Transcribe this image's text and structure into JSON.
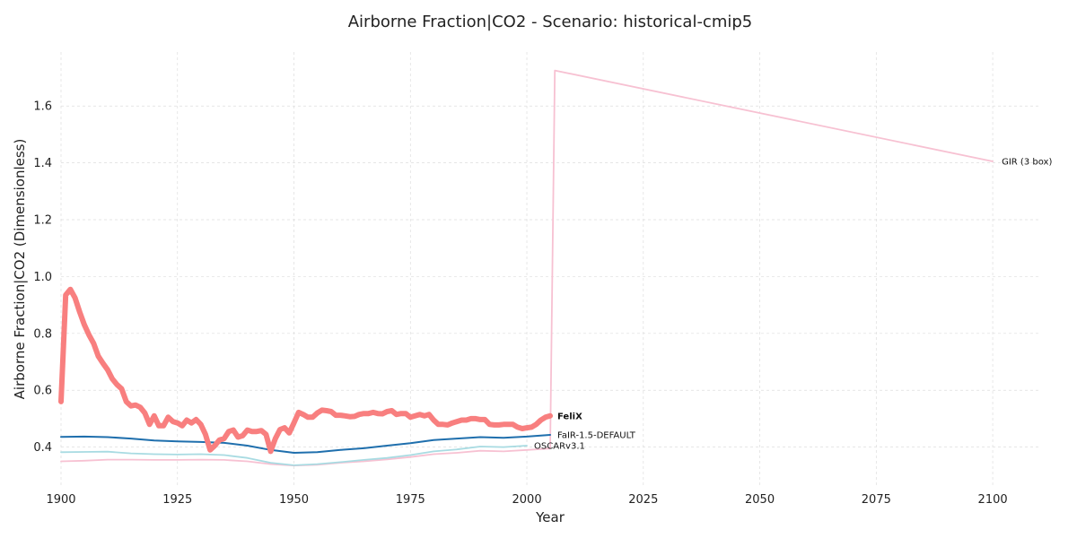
{
  "chart_data": {
    "type": "line",
    "title": "Airborne Fraction|CO2 - Scenario: historical-cmip5",
    "xlabel": "Year",
    "ylabel": "Airborne Fraction|CO2 (Dimensionless)",
    "xlim": [
      1900,
      2110
    ],
    "ylim": [
      0.26,
      1.79
    ],
    "xticks": [
      1900,
      1925,
      1950,
      1975,
      2000,
      2025,
      2050,
      2075,
      2100
    ],
    "xtick_labels": [
      "1900",
      "1925",
      "1950",
      "1975",
      "2000",
      "2025",
      "2050",
      "2075",
      "2100"
    ],
    "yticks": [
      0.4,
      0.6,
      0.8,
      1.0,
      1.2,
      1.4,
      1.6
    ],
    "ytick_labels": [
      "0.4",
      "0.6",
      "0.8",
      "1.0",
      "1.2",
      "1.4",
      "1.6"
    ],
    "grid": true,
    "legend": "inline labels at line ends",
    "series": [
      {
        "name": "GIR (3 box)",
        "color": "#f7c1d2",
        "label_bold": false,
        "x": [
          1900,
          1905,
          1910,
          1915,
          1920,
          1925,
          1930,
          1935,
          1940,
          1945,
          1950,
          1955,
          1960,
          1965,
          1970,
          1975,
          1980,
          1985,
          1990,
          1995,
          2000,
          2005,
          2006,
          2100
        ],
        "y": [
          0.35,
          0.352,
          0.356,
          0.356,
          0.355,
          0.355,
          0.356,
          0.355,
          0.35,
          0.34,
          0.335,
          0.338,
          0.345,
          0.35,
          0.357,
          0.365,
          0.375,
          0.38,
          0.387,
          0.385,
          0.39,
          0.395,
          1.725,
          1.405
        ]
      },
      {
        "name": "OSCARv3.1",
        "color": "#a8dbe2",
        "label_bold": false,
        "x": [
          1900,
          1905,
          1910,
          1915,
          1920,
          1925,
          1930,
          1935,
          1940,
          1945,
          1950,
          1955,
          1960,
          1965,
          1970,
          1975,
          1980,
          1985,
          1990,
          1995,
          2000
        ],
        "y": [
          0.382,
          0.383,
          0.384,
          0.378,
          0.375,
          0.374,
          0.375,
          0.372,
          0.362,
          0.345,
          0.336,
          0.34,
          0.347,
          0.355,
          0.362,
          0.372,
          0.385,
          0.392,
          0.402,
          0.4,
          0.405
        ]
      },
      {
        "name": "FaIR-1.5-DEFAULT",
        "color": "#1f6fad",
        "label_bold": false,
        "x": [
          1900,
          1905,
          1910,
          1915,
          1920,
          1925,
          1930,
          1935,
          1940,
          1945,
          1950,
          1955,
          1960,
          1965,
          1970,
          1975,
          1980,
          1985,
          1990,
          1995,
          2000,
          2005
        ],
        "y": [
          0.436,
          0.437,
          0.435,
          0.43,
          0.423,
          0.42,
          0.418,
          0.415,
          0.405,
          0.39,
          0.38,
          0.382,
          0.39,
          0.396,
          0.405,
          0.414,
          0.425,
          0.43,
          0.435,
          0.433,
          0.437,
          0.443
        ]
      },
      {
        "name": "FeliX",
        "color": "#f87f7f",
        "label_bold": true,
        "x": [
          1900,
          1901,
          1902,
          1903,
          1904,
          1905,
          1906,
          1907,
          1908,
          1909,
          1910,
          1911,
          1912,
          1913,
          1914,
          1915,
          1916,
          1917,
          1918,
          1919,
          1920,
          1921,
          1922,
          1923,
          1924,
          1925,
          1926,
          1927,
          1928,
          1929,
          1930,
          1931,
          1932,
          1933,
          1934,
          1935,
          1936,
          1937,
          1938,
          1939,
          1940,
          1941,
          1942,
          1943,
          1944,
          1945,
          1946,
          1947,
          1948,
          1949,
          1950,
          1951,
          1952,
          1953,
          1954,
          1955,
          1956,
          1957,
          1958,
          1959,
          1960,
          1961,
          1962,
          1963,
          1964,
          1965,
          1966,
          1967,
          1968,
          1969,
          1970,
          1971,
          1972,
          1973,
          1974,
          1975,
          1976,
          1977,
          1978,
          1979,
          1980,
          1981,
          1982,
          1983,
          1984,
          1985,
          1986,
          1987,
          1988,
          1989,
          1990,
          1991,
          1992,
          1993,
          1994,
          1995,
          1996,
          1997,
          1998,
          1999,
          2000,
          2001,
          2002,
          2003,
          2004,
          2005
        ],
        "y": [
          0.56,
          0.935,
          0.955,
          0.925,
          0.875,
          0.83,
          0.795,
          0.765,
          0.72,
          0.695,
          0.672,
          0.64,
          0.62,
          0.605,
          0.56,
          0.545,
          0.548,
          0.54,
          0.52,
          0.48,
          0.51,
          0.475,
          0.475,
          0.505,
          0.49,
          0.485,
          0.475,
          0.495,
          0.485,
          0.497,
          0.48,
          0.445,
          0.39,
          0.405,
          0.425,
          0.43,
          0.455,
          0.46,
          0.435,
          0.44,
          0.46,
          0.455,
          0.455,
          0.458,
          0.445,
          0.385,
          0.43,
          0.462,
          0.468,
          0.45,
          0.485,
          0.522,
          0.515,
          0.505,
          0.505,
          0.52,
          0.53,
          0.528,
          0.525,
          0.512,
          0.512,
          0.51,
          0.507,
          0.508,
          0.515,
          0.518,
          0.518,
          0.522,
          0.518,
          0.517,
          0.525,
          0.528,
          0.515,
          0.518,
          0.518,
          0.505,
          0.51,
          0.515,
          0.51,
          0.515,
          0.495,
          0.48,
          0.48,
          0.478,
          0.485,
          0.49,
          0.495,
          0.495,
          0.5,
          0.5,
          0.497,
          0.497,
          0.48,
          0.478,
          0.478,
          0.48,
          0.48,
          0.48,
          0.47,
          0.465,
          0.468,
          0.47,
          0.48,
          0.495,
          0.505,
          0.51
        ]
      }
    ]
  }
}
